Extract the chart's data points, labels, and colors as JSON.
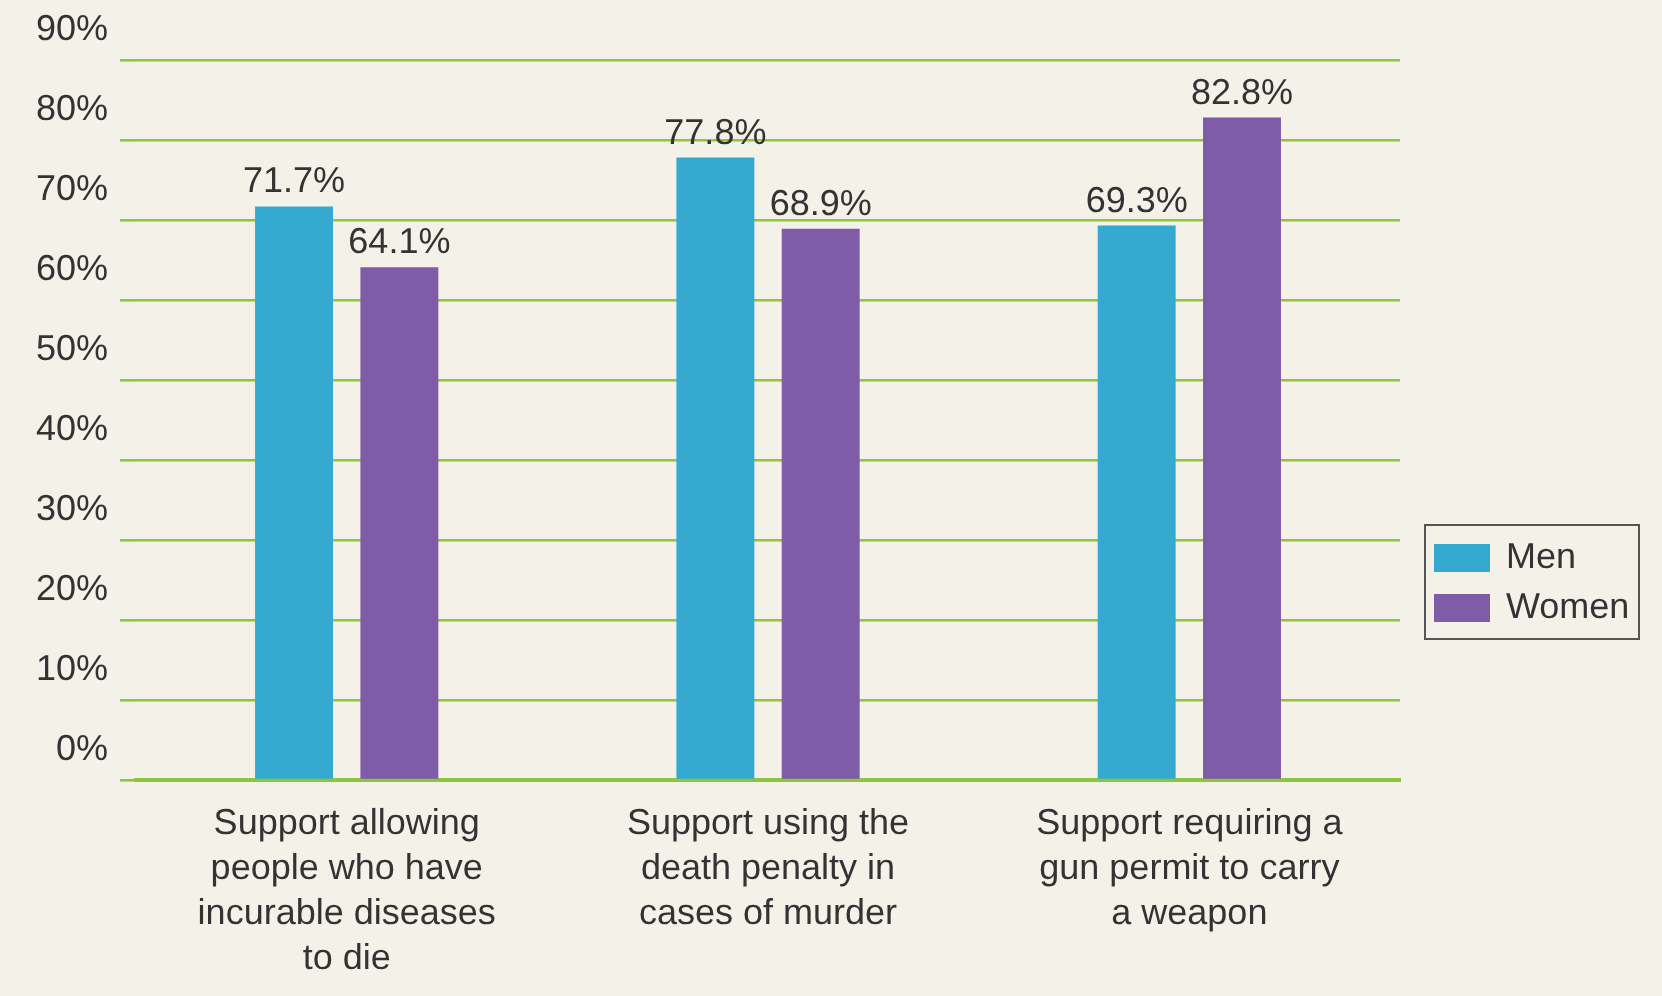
{
  "chart_data": {
    "type": "bar",
    "categories": [
      "Support allowing people who have incurable diseases to die",
      "Support using the death penalty in cases of murder",
      "Support requiring a gun permit to carry a weapon"
    ],
    "series": [
      {
        "name": "Men",
        "color": "#36a9d0",
        "values": [
          71.7,
          77.8,
          69.3
        ],
        "value_labels": [
          "71.7%",
          "77.8%",
          "69.3%"
        ]
      },
      {
        "name": "Women",
        "color": "#7f5ca8",
        "values": [
          64.1,
          68.9,
          82.8
        ],
        "value_labels": [
          "64.1%",
          "68.9%",
          "82.8%"
        ]
      }
    ],
    "ylim": [
      0,
      90
    ],
    "yticks": [
      {
        "value": 0,
        "label": "0%"
      },
      {
        "value": 10,
        "label": "10%"
      },
      {
        "value": 20,
        "label": "20%"
      },
      {
        "value": 30,
        "label": "30%"
      },
      {
        "value": 40,
        "label": "40%"
      },
      {
        "value": 50,
        "label": "50%"
      },
      {
        "value": 60,
        "label": "60%"
      },
      {
        "value": 70,
        "label": "70%"
      },
      {
        "value": 80,
        "label": "80%"
      },
      {
        "value": 90,
        "label": "90%"
      }
    ],
    "grid": "y",
    "legend": "right"
  }
}
